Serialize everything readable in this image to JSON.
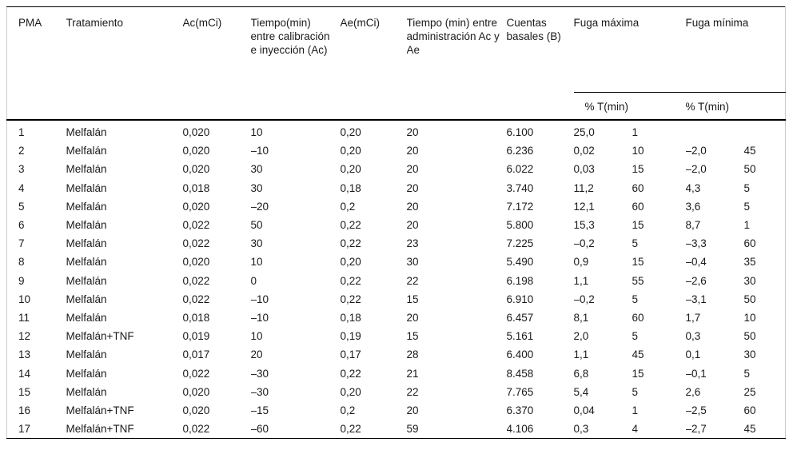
{
  "page": {
    "background": "#ffffff",
    "text_color": "#1a1a1a",
    "rule_color": "#000000",
    "side_edge_color": "#cccccc"
  },
  "table": {
    "columns": [
      "PMA",
      "Tratamiento",
      "Ac(mCi)",
      "Tiempo(min) entre calibración e inyección (Ac)",
      "Ae(mCi)",
      "Tiempo (min) entre administración Ac y Ae",
      "Cuentas basales (B)"
    ],
    "groups": [
      {
        "label": "Fuga máxima",
        "subheader": "% T(min)"
      },
      {
        "label": "Fuga mínima",
        "subheader": "% T(min)"
      }
    ],
    "rows": [
      [
        "1",
        "Melfalán",
        "0,020",
        "10",
        "0,20",
        "20",
        "6.100",
        "25,0",
        "1",
        "",
        ""
      ],
      [
        "2",
        "Melfalán",
        "0,020",
        "–10",
        "0,20",
        "20",
        "6.236",
        "0,02",
        "10",
        "–2,0",
        "45"
      ],
      [
        "3",
        "Melfalán",
        "0,020",
        "30",
        "0,20",
        "20",
        "6.022",
        "0,03",
        "15",
        "–2,0",
        "50"
      ],
      [
        "4",
        "Melfalán",
        "0,018",
        "30",
        "0,18",
        "20",
        "3.740",
        "11,2",
        "60",
        "4,3",
        "5"
      ],
      [
        "5",
        "Melfalán",
        "0,020",
        "–20",
        "0,2",
        "20",
        "7.172",
        "12,1",
        "60",
        "3,6",
        "5"
      ],
      [
        "6",
        "Melfalán",
        "0,022",
        "50",
        "0,22",
        "20",
        "5.800",
        "15,3",
        "15",
        "8,7",
        "1"
      ],
      [
        "7",
        "Melfalán",
        "0,022",
        "30",
        "0,22",
        "23",
        "7.225",
        "–0,2",
        "5",
        "–3,3",
        "60"
      ],
      [
        "8",
        "Melfalán",
        "0,020",
        "10",
        "0,20",
        "30",
        "5.490",
        "0,9",
        "15",
        "–0,4",
        "35"
      ],
      [
        "9",
        "Melfalán",
        "0,022",
        "0",
        "0,22",
        "22",
        "6.198",
        "1,1",
        "55",
        "–2,6",
        "30"
      ],
      [
        "10",
        "Melfalán",
        "0,022",
        "–10",
        "0,22",
        "15",
        "6.910",
        "–0,2",
        "5",
        "–3,1",
        "50"
      ],
      [
        "11",
        "Melfalán",
        "0,018",
        "–10",
        "0,18",
        "20",
        "6.457",
        "8,1",
        "60",
        "1,7",
        "10"
      ],
      [
        "12",
        "Melfalán+TNF",
        "0,019",
        "10",
        "0,19",
        "15",
        "5.161",
        "2,0",
        "5",
        "0,3",
        "50"
      ],
      [
        "13",
        "Melfalán",
        "0,017",
        "20",
        "0,17",
        "28",
        "6.400",
        "1,1",
        "45",
        "0,1",
        "30"
      ],
      [
        "14",
        "Melfalán",
        "0,022",
        "–30",
        "0,22",
        "21",
        "8.458",
        "6,8",
        "15",
        "–0,1",
        "5"
      ],
      [
        "15",
        "Melfalán",
        "0,020",
        "–30",
        "0,20",
        "22",
        "7.765",
        "5,4",
        "5",
        "2,6",
        "25"
      ],
      [
        "16",
        "Melfalán+TNF",
        "0,020",
        "–15",
        "0,2",
        "20",
        "6.370",
        "0,04",
        "1",
        "–2,5",
        "60"
      ],
      [
        "17",
        "Melfalán+TNF",
        "0,022",
        "–60",
        "0,22",
        "59",
        "4.106",
        "0,3",
        "4",
        "–2,7",
        "45"
      ]
    ]
  },
  "chart_data": {
    "type": "table",
    "title": "",
    "column_headers": [
      "PMA",
      "Tratamiento",
      "Ac(mCi)",
      "Tiempo(min) entre calibración e inyección (Ac)",
      "Ae(mCi)",
      "Tiempo (min) entre administración Ac y Ae",
      "Cuentas basales (B)",
      "Fuga máxima %",
      "Fuga máxima T(min)",
      "Fuga mínima %",
      "Fuga mínima T(min)"
    ]
  }
}
